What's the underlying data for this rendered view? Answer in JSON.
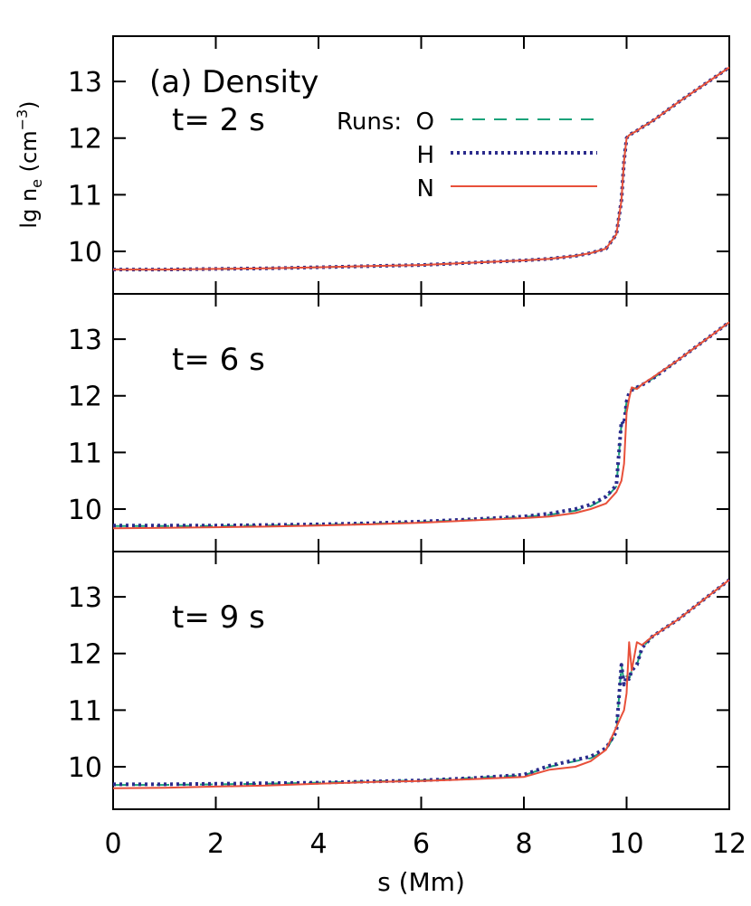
{
  "chart_data": [
    {
      "type": "line",
      "title": "t= 2 s",
      "annotation": "(a) Density",
      "legend_title": "Runs:",
      "ylabel": [
        "lg n",
        "e",
        " (cm",
        "−3",
        ")"
      ],
      "x": [
        0,
        1,
        2,
        3,
        4,
        5,
        6,
        7,
        8,
        8.5,
        9,
        9.3,
        9.6,
        9.8,
        9.9,
        9.95,
        10,
        10.05,
        10.1,
        10.2,
        10.3,
        10.5,
        11,
        12
      ],
      "series": [
        {
          "name": "O",
          "color": "#1aa37a",
          "dash": "14,10",
          "values": [
            9.68,
            9.68,
            9.69,
            9.7,
            9.72,
            9.74,
            9.76,
            9.8,
            9.84,
            9.87,
            9.92,
            9.97,
            10.05,
            10.3,
            10.9,
            11.6,
            12.0,
            12.05,
            12.08,
            12.13,
            12.19,
            12.3,
            12.63,
            13.25
          ]
        },
        {
          "name": "H",
          "color": "#2b2b8c",
          "dash": "3,4",
          "values": [
            9.68,
            9.68,
            9.69,
            9.7,
            9.72,
            9.74,
            9.76,
            9.8,
            9.84,
            9.87,
            9.92,
            9.97,
            10.05,
            10.3,
            10.9,
            11.6,
            12.0,
            12.05,
            12.08,
            12.13,
            12.19,
            12.3,
            12.63,
            13.25
          ]
        },
        {
          "name": "N",
          "color": "#e8503a",
          "dash": "none",
          "values": [
            9.68,
            9.68,
            9.69,
            9.7,
            9.72,
            9.74,
            9.76,
            9.8,
            9.84,
            9.87,
            9.92,
            9.97,
            10.05,
            10.3,
            10.9,
            11.6,
            12.0,
            12.05,
            12.08,
            12.13,
            12.19,
            12.3,
            12.63,
            13.25
          ]
        }
      ],
      "xlim": [
        0,
        12
      ],
      "ylim": [
        9.25,
        13.8
      ],
      "yticks": [
        10,
        11,
        12,
        13
      ],
      "xticks": [
        0,
        2,
        4,
        6,
        8,
        10,
        12
      ]
    },
    {
      "type": "line",
      "title": "t= 6 s",
      "x": [
        0,
        1,
        2,
        3,
        4,
        5,
        6,
        7,
        8,
        8.5,
        9,
        9.3,
        9.6,
        9.8,
        9.9,
        9.95,
        10,
        10.05,
        10.1,
        10.2,
        10.3,
        10.5,
        11,
        12
      ],
      "series": [
        {
          "name": "O",
          "color": "#1aa37a",
          "dash": "14,10",
          "values": [
            9.7,
            9.7,
            9.7,
            9.71,
            9.72,
            9.74,
            9.77,
            9.81,
            9.86,
            9.9,
            9.97,
            10.05,
            10.2,
            10.4,
            11.5,
            11.55,
            11.9,
            12.05,
            12.1,
            12.15,
            12.19,
            12.3,
            12.63,
            13.3
          ]
        },
        {
          "name": "H",
          "color": "#2b2b8c",
          "dash": "3,4",
          "values": [
            9.71,
            9.71,
            9.71,
            9.72,
            9.73,
            9.75,
            9.78,
            9.82,
            9.87,
            9.92,
            10.0,
            10.08,
            10.22,
            10.42,
            11.55,
            11.5,
            11.9,
            12.05,
            12.1,
            12.15,
            12.19,
            12.3,
            12.63,
            13.3
          ]
        },
        {
          "name": "N",
          "color": "#e8503a",
          "dash": "none",
          "values": [
            9.66,
            9.67,
            9.68,
            9.69,
            9.71,
            9.73,
            9.76,
            9.8,
            9.84,
            9.87,
            9.93,
            10.0,
            10.1,
            10.3,
            10.5,
            10.8,
            11.7,
            11.95,
            12.15,
            12.12,
            12.2,
            12.32,
            12.63,
            13.3
          ]
        }
      ],
      "xlim": [
        0,
        12
      ],
      "ylim": [
        9.25,
        13.8
      ],
      "yticks": [
        10,
        11,
        12,
        13
      ],
      "xticks": [
        0,
        2,
        4,
        6,
        8,
        10,
        12
      ]
    },
    {
      "type": "line",
      "title": "t= 9 s",
      "xlabel": "s (Mm)",
      "x": [
        0,
        1,
        2,
        3,
        4,
        5,
        6,
        7,
        8,
        8.5,
        9,
        9.3,
        9.6,
        9.8,
        9.9,
        9.95,
        10,
        10.05,
        10.1,
        10.2,
        10.3,
        10.5,
        11,
        12
      ],
      "series": [
        {
          "name": "O",
          "color": "#1aa37a",
          "dash": "14,10",
          "values": [
            9.68,
            9.68,
            9.69,
            9.7,
            9.72,
            9.74,
            9.76,
            9.8,
            9.85,
            10.0,
            10.1,
            10.15,
            10.3,
            10.6,
            11.8,
            11.5,
            11.6,
            11.55,
            11.7,
            11.8,
            12.1,
            12.3,
            12.6,
            13.3
          ]
        },
        {
          "name": "H",
          "color": "#2b2b8c",
          "dash": "3,4",
          "values": [
            9.69,
            9.69,
            9.7,
            9.71,
            9.72,
            9.74,
            9.76,
            9.8,
            9.86,
            10.02,
            10.12,
            10.18,
            10.33,
            10.62,
            11.8,
            11.45,
            11.6,
            11.55,
            11.7,
            11.8,
            12.1,
            12.3,
            12.6,
            13.3
          ]
        },
        {
          "name": "N",
          "color": "#e8503a",
          "dash": "none",
          "values": [
            9.62,
            9.63,
            9.65,
            9.67,
            9.7,
            9.73,
            9.75,
            9.78,
            9.82,
            9.95,
            10.0,
            10.1,
            10.3,
            10.7,
            10.9,
            11.0,
            11.3,
            12.2,
            11.7,
            12.2,
            12.15,
            12.3,
            12.6,
            13.3
          ]
        }
      ],
      "xlim": [
        0,
        12
      ],
      "ylim": [
        9.25,
        13.8
      ],
      "yticks": [
        10,
        11,
        12,
        13
      ],
      "xticks": [
        0,
        2,
        4,
        6,
        8,
        10,
        12
      ]
    }
  ]
}
